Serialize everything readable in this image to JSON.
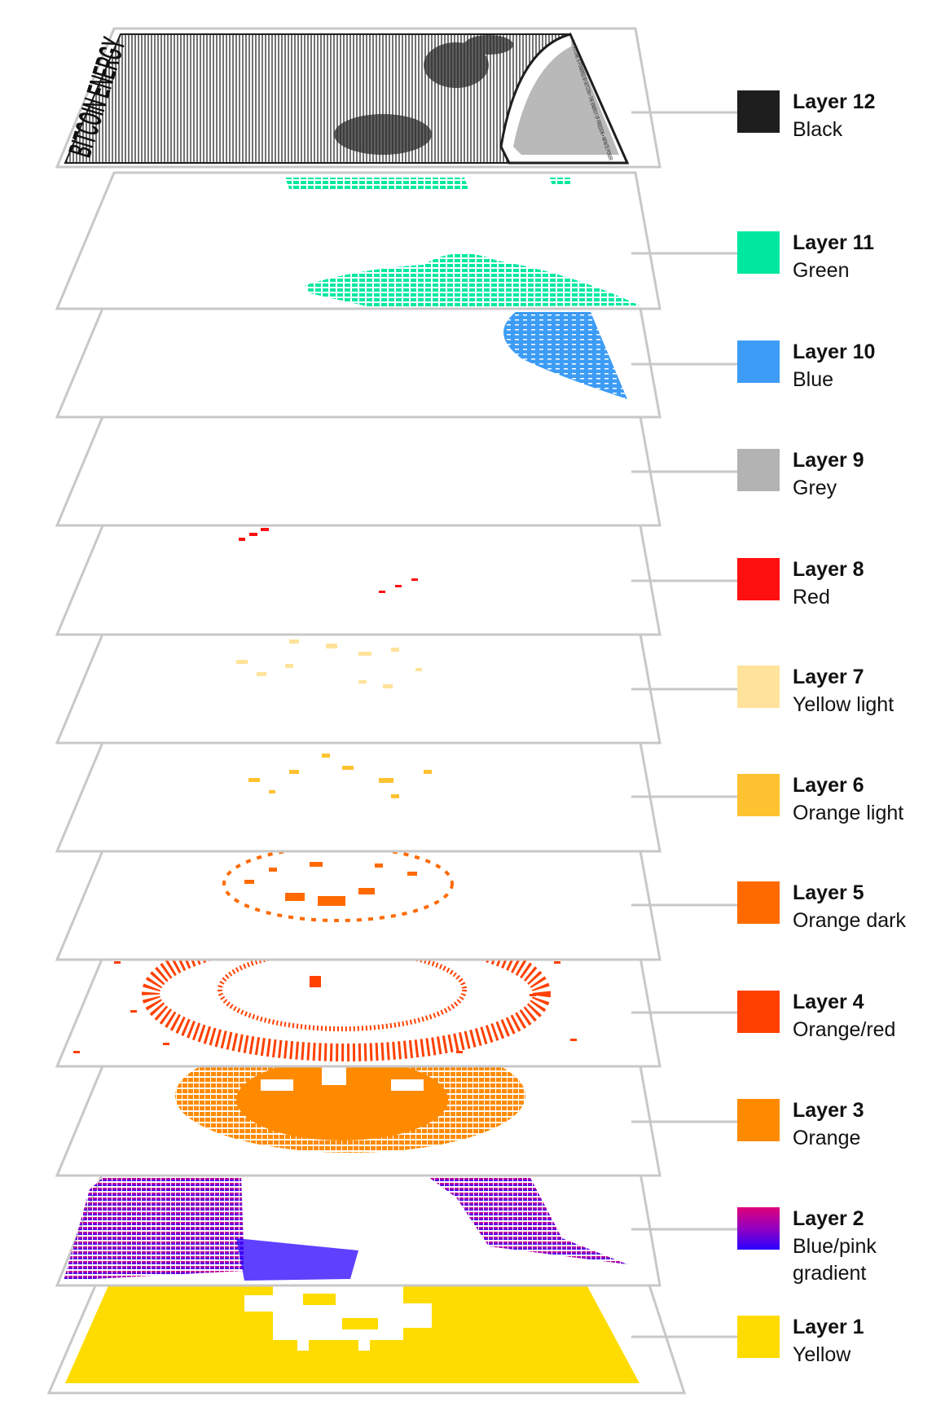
{
  "poster": {
    "title_text": "BITCOIN ENERGY",
    "side_text": "THE FUTURE IS POWERED BY BITCOIN • THE ENERGY OF FREEDOM • INFINITE POWER"
  },
  "layers": [
    {
      "id": 12,
      "label": "Layer 12",
      "name": "Black",
      "color": "#1e1e1e",
      "icon": "engraved-poster-artwork"
    },
    {
      "id": 11,
      "label": "Layer 11",
      "name": "Green",
      "color": "#00e8a0",
      "icon": "green-foliage-pattern"
    },
    {
      "id": 10,
      "label": "Layer 10",
      "name": "Blue",
      "color": "#3d9cf5",
      "icon": "blue-globe-pattern"
    },
    {
      "id": 9,
      "label": "Layer 9",
      "name": "Grey",
      "color": "#b3b3b3",
      "icon": "grey-moon-pattern"
    },
    {
      "id": 8,
      "label": "Layer 8",
      "name": "Red",
      "color": "#ff1010",
      "icon": "red-speck-pattern"
    },
    {
      "id": 7,
      "label": "Layer 7",
      "name": "Yellow light",
      "color": "#ffe39a",
      "icon": "yellow-speck-pattern"
    },
    {
      "id": 6,
      "label": "Layer 6",
      "name": "Orange light",
      "color": "#ffc230",
      "icon": "light-orange-speck-pattern"
    },
    {
      "id": 5,
      "label": "Layer 5",
      "name": "Orange dark",
      "color": "#ff6a00",
      "icon": "dark-orange-ring-pattern"
    },
    {
      "id": 4,
      "label": "Layer 4",
      "name": "Orange/red",
      "color": "#ff4000",
      "icon": "sun-burst-pattern"
    },
    {
      "id": 3,
      "label": "Layer 3",
      "name": "Orange",
      "color": "#ff8a00",
      "icon": "sun-disc-pattern"
    },
    {
      "id": 2,
      "label": "Layer 2",
      "name": "Blue/pink gradient",
      "color": "#e0007a",
      "color2": "#2a00ff",
      "icon": "gradient-sky-pattern"
    },
    {
      "id": 1,
      "label": "Layer 1",
      "name": "Yellow",
      "color": "#ffdc00",
      "icon": "yellow-base-with-bitcoin-symbol"
    }
  ]
}
